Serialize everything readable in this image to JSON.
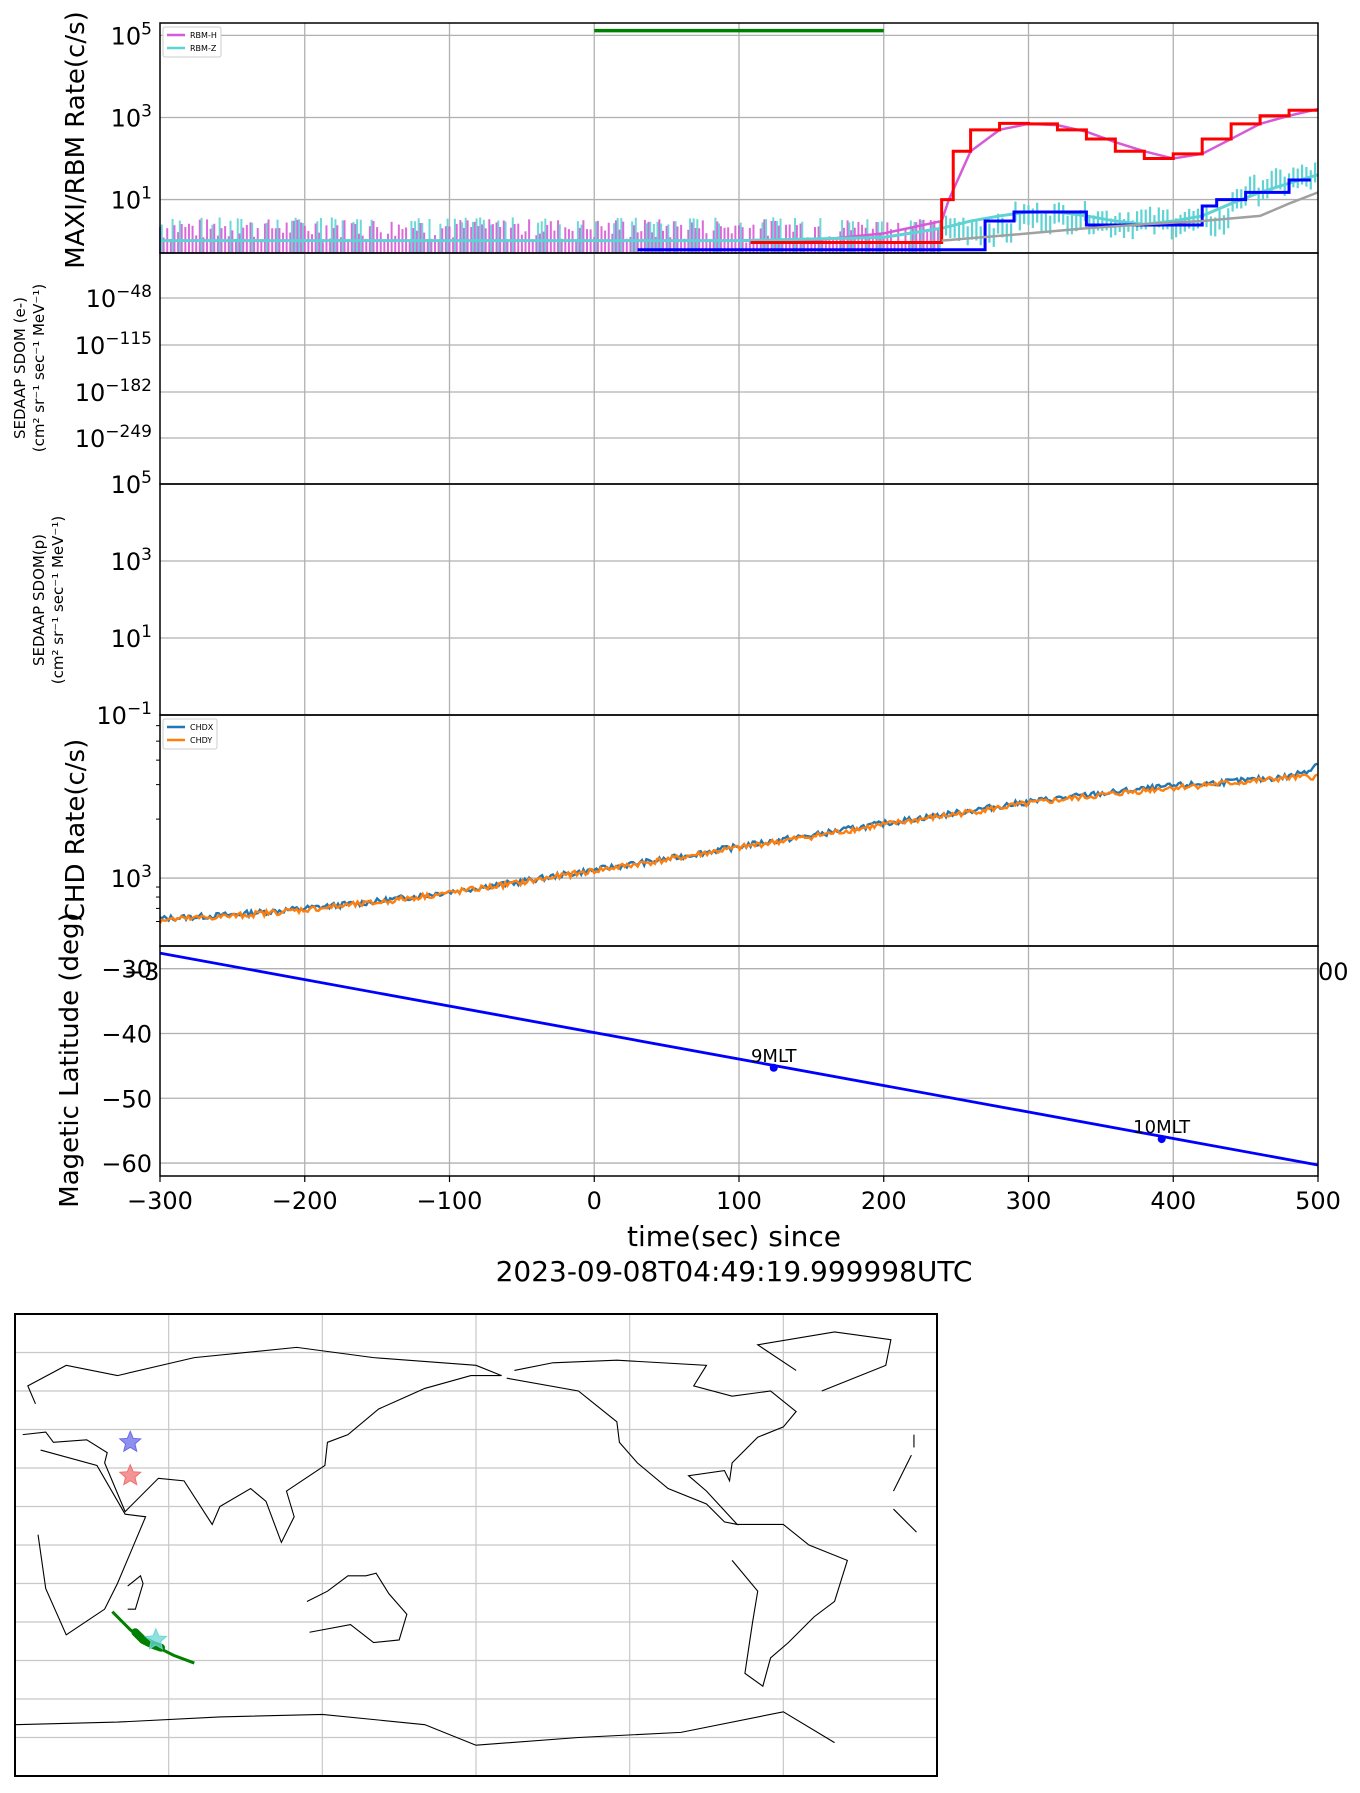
{
  "chart_data": [
    {
      "panel": "rbm",
      "type": "line",
      "ylabel": "MAXI/RBM Rate(c/s)",
      "yscale": "log",
      "yticks": [
        {
          "value": 10,
          "label_base": "10",
          "label_exp": "1"
        },
        {
          "value": 1000,
          "label_base": "10",
          "label_exp": "3"
        },
        {
          "value": 100000,
          "label_base": "10",
          "label_exp": "5"
        }
      ],
      "ylim": [
        0.5,
        200000
      ],
      "xlim": [
        -300,
        500
      ],
      "grid": true,
      "legend": {
        "placement": "top-left",
        "entries": [
          "RBM-H",
          "RBM-Z"
        ]
      },
      "colors": {
        "RBM-H": "#d65ad6",
        "RBM-Z": "#5fd3d3",
        "red": "#ff0000",
        "blue": "#0000ff",
        "gray": "#a0a0a0",
        "green": "#008000"
      },
      "green_bar": {
        "x": [
          0,
          200
        ],
        "y": 130000
      },
      "series": [
        {
          "name": "RBM-H",
          "x": [
            -300,
            -200,
            -100,
            0,
            100,
            150,
            200,
            240,
            245,
            260,
            280,
            300,
            320,
            340,
            360,
            380,
            400,
            420,
            440,
            460,
            480,
            500
          ],
          "y": [
            1,
            1,
            1,
            1,
            1,
            1,
            1.5,
            3,
            10,
            150,
            500,
            700,
            650,
            450,
            250,
            150,
            100,
            130,
            300,
            700,
            1100,
            1600
          ]
        },
        {
          "name": "RBM-Z",
          "x": [
            -300,
            -200,
            -100,
            0,
            100,
            200,
            240,
            260,
            280,
            300,
            320,
            340,
            360,
            380,
            400,
            420,
            440,
            460,
            480,
            500
          ],
          "y": [
            1,
            1,
            1,
            1,
            1,
            1.2,
            2,
            3,
            4,
            5,
            5,
            4,
            3,
            2.5,
            3,
            4,
            8,
            15,
            25,
            40
          ]
        },
        {
          "x": [
            108,
            240,
            240,
            248,
            248,
            260,
            260,
            280,
            280,
            300,
            300,
            320,
            320,
            340,
            340,
            360,
            360,
            380,
            380,
            400,
            400,
            420,
            420,
            440,
            440,
            460,
            460,
            480,
            480,
            500
          ],
          "y": [
            0.9,
            0.9,
            10,
            10,
            150,
            150,
            500,
            500,
            720,
            720,
            700,
            700,
            500,
            500,
            300,
            300,
            150,
            150,
            100,
            100,
            130,
            130,
            300,
            300,
            700,
            700,
            1100,
            1100,
            1500,
            1500
          ]
        },
        {
          "x": [
            30,
            270,
            270,
            290,
            290,
            340,
            340,
            420,
            420,
            430,
            430,
            450,
            450,
            480,
            480,
            495
          ],
          "y": [
            0.6,
            0.6,
            3,
            3,
            5,
            5,
            2.4,
            2.4,
            7,
            7,
            10,
            10,
            15,
            15,
            30,
            30
          ]
        },
        {
          "x": [
            240,
            300,
            340,
            380,
            420,
            460,
            480,
            500
          ],
          "y": [
            1,
            1.5,
            2,
            2.5,
            3,
            4,
            8,
            15
          ]
        }
      ]
    },
    {
      "panel": "sedaap-e",
      "type": "line",
      "ylabel": [
        "SEDAAP SDOM (e-)",
        "(cm² sr⁻¹ sec⁻¹ MeV⁻¹)"
      ],
      "yscale": "log",
      "yticks": [
        {
          "value": -48,
          "label_base": "10",
          "label_exp": "−48"
        },
        {
          "value": -115,
          "label_base": "10",
          "label_exp": "−115"
        },
        {
          "value": -182,
          "label_base": "10",
          "label_exp": "−182"
        },
        {
          "value": -249,
          "label_base": "10",
          "label_exp": "−249"
        }
      ],
      "grid": true,
      "series": []
    },
    {
      "panel": "sedaap-p",
      "type": "line",
      "ylabel": [
        "SEDAAP SDOM(p)",
        "(cm² sr⁻¹ sec⁻¹ MeV⁻¹)"
      ],
      "yscale": "log",
      "yticks": [
        {
          "value": 0.1,
          "label_base": "10",
          "label_exp": "−1"
        },
        {
          "value": 10,
          "label_base": "10",
          "label_exp": "1"
        },
        {
          "value": 1000,
          "label_base": "10",
          "label_exp": "3"
        },
        {
          "value": 100000,
          "label_base": "10",
          "label_exp": "5"
        }
      ],
      "ylim": [
        0.1,
        100000
      ],
      "grid": true,
      "series": []
    },
    {
      "panel": "chd",
      "type": "line",
      "ylabel": "CHD Rate(c/s)",
      "yscale": "log",
      "yticks": [
        {
          "value": 1000,
          "label_base": "10",
          "label_exp": "3"
        }
      ],
      "ylim": [
        450,
        6800
      ],
      "xlim": [
        -300,
        500
      ],
      "xtick_labels_clipped": [
        "−3",
        "00"
      ],
      "grid": true,
      "legend": {
        "placement": "top-left",
        "entries": [
          "CHDX",
          "CHDY"
        ]
      },
      "colors": {
        "CHDX": "#1f77b4",
        "CHDY": "#ff7f0e"
      },
      "series": [
        {
          "name": "CHDX",
          "x": [
            -300,
            -250,
            -200,
            -150,
            -100,
            -50,
            0,
            50,
            100,
            150,
            200,
            250,
            300,
            350,
            400,
            450,
            480,
            495,
            500
          ],
          "y": [
            620,
            650,
            700,
            760,
            850,
            960,
            1100,
            1250,
            1450,
            1650,
            1900,
            2150,
            2450,
            2700,
            2950,
            3150,
            3300,
            3600,
            3900
          ]
        },
        {
          "name": "CHDY",
          "x": [
            -300,
            -250,
            -200,
            -150,
            -100,
            -50,
            0,
            50,
            100,
            150,
            200,
            250,
            300,
            350,
            400,
            450,
            480,
            500
          ],
          "y": [
            610,
            640,
            690,
            750,
            840,
            950,
            1090,
            1240,
            1430,
            1630,
            1870,
            2120,
            2400,
            2650,
            2900,
            3100,
            3250,
            3300
          ]
        }
      ]
    },
    {
      "panel": "latitude",
      "type": "line",
      "ylabel": "Magetic Latitude  (deg)",
      "xlabel": [
        "time(sec) since",
        "2023-09-08T04:49:19.999998UTC"
      ],
      "ylim": [
        -62,
        -26.5
      ],
      "xlim": [
        -300,
        500
      ],
      "yticks": [
        -60,
        -50,
        -40,
        -30
      ],
      "xticks": [
        -300,
        -200,
        -100,
        0,
        100,
        200,
        300,
        400,
        500
      ],
      "grid": true,
      "colors": {
        "line": "#0000ff"
      },
      "series": [
        {
          "x": [
            -300,
            500
          ],
          "y": [
            -27.6,
            -60.3
          ]
        }
      ],
      "annotations": [
        {
          "text": "9MLT",
          "x": 124,
          "y": -45.3
        },
        {
          "text": "10MLT",
          "x": 392,
          "y": -56.3
        }
      ]
    },
    {
      "panel": "map",
      "type": "scatter",
      "projection": "equirectangular, centered 180°",
      "grid": true,
      "markers": [
        {
          "kind": "star",
          "color": "#6a6ae8",
          "lon": 45,
          "lat": 40
        },
        {
          "kind": "star",
          "color": "#f07070",
          "lon": 45,
          "lat": 27
        },
        {
          "kind": "star",
          "color": "#6ad6d6",
          "lon": 55,
          "lat": -37
        }
      ],
      "track": {
        "color": "#008000",
        "points": [
          [
            38,
            -26
          ],
          [
            45,
            -33
          ],
          [
            50,
            -37
          ],
          [
            56,
            -40
          ],
          [
            62,
            -43
          ],
          [
            70,
            -46
          ]
        ]
      },
      "track_highlight": {
        "color": "#008000",
        "points": [
          [
            47,
            -34
          ],
          [
            50,
            -37
          ],
          [
            54,
            -39
          ],
          [
            57,
            -40
          ]
        ]
      }
    }
  ]
}
